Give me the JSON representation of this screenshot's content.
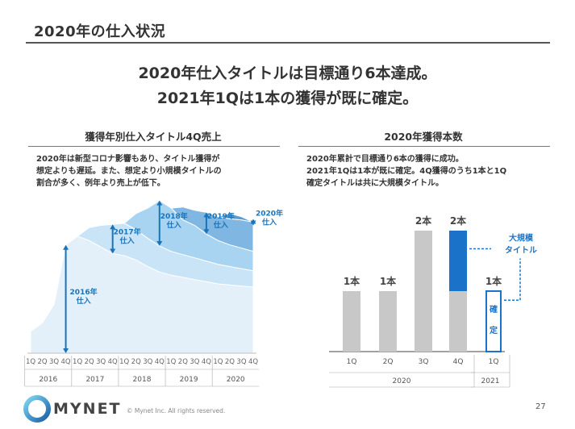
{
  "header": {
    "title": "2020年の仕入状況"
  },
  "headline": {
    "line1": "2020年仕入タイトルは目標通り6本達成。",
    "line2": "2021年1Qは1本の獲得が既に確定。"
  },
  "left_panel": {
    "title": "獲得年別仕入タイトル4Q売上",
    "description": [
      "2020年は新型コロナ影響もあり、タイトル獲得が",
      "想定よりも遅延。また、想定より小規模タイトルの",
      "割合が多く、例年より売上が低下。"
    ]
  },
  "right_panel": {
    "title": "2020年獲得本数",
    "description": [
      "2020年累計で目標通り6本の獲得に成功。",
      "2021年1Qは1本が既に確定。4Q獲得のうち1本と1Q",
      "確定タイトルは共に大規模タイトル。"
    ]
  },
  "colors": {
    "area_2016": "#e3f0fa",
    "area_2017": "#c9e4f7",
    "area_2018": "#a9d4f1",
    "area_2019": "#7fb7e2",
    "area_2020": "#5c9ccf",
    "arrow": "#1a73b8",
    "bar_gray": "#c8c8c8",
    "bar_blue": "#1a73c9"
  },
  "chart_data": [
    {
      "type": "area",
      "quarter_labels": [
        "1Q",
        "2Q",
        "3Q",
        "4Q",
        "1Q",
        "2Q",
        "3Q",
        "4Q",
        "1Q",
        "2Q",
        "3Q",
        "4Q",
        "1Q",
        "2Q",
        "3Q",
        "4Q",
        "1Q",
        "2Q",
        "3Q",
        "4Q"
      ],
      "year_labels": [
        "2016",
        "2017",
        "2018",
        "2019",
        "2020"
      ],
      "series": [
        {
          "name": "2016年\n仕入",
          "start_index": 0,
          "values": [
            20,
            28,
            45,
            100,
            108,
            104,
            98,
            92,
            90,
            86,
            80,
            75,
            72,
            70,
            68,
            66,
            64,
            63,
            62,
            61
          ]
        },
        {
          "name": "2017年\n仕入",
          "start_index": 4,
          "values": [
            0,
            12,
            20,
            27,
            30,
            28,
            26,
            24,
            22,
            21,
            20,
            19,
            18,
            17,
            16,
            15
          ]
        },
        {
          "name": "2018年\n仕入",
          "start_index": 8,
          "values": [
            0,
            15,
            28,
            42,
            40,
            32,
            30,
            25,
            22,
            20,
            19,
            18
          ]
        },
        {
          "name": "2019年\n仕入",
          "start_index": 12,
          "values": [
            0,
            12,
            14,
            20,
            22,
            24,
            26,
            27
          ]
        },
        {
          "name": "2020年\n仕入",
          "start_index": 16,
          "values": [
            0,
            5,
            3,
            0
          ]
        }
      ],
      "ylim": [
        0,
        140
      ],
      "xlabel": "",
      "ylabel": ""
    },
    {
      "type": "bar",
      "categories": [
        "1Q",
        "2Q",
        "3Q",
        "4Q",
        "1Q"
      ],
      "year_groups": [
        {
          "label": "2020",
          "count": 4
        },
        {
          "label": "2021",
          "count": 1
        }
      ],
      "values": [
        1,
        1,
        2,
        2,
        1
      ],
      "large_title_counts": [
        0,
        0,
        0,
        1,
        1
      ],
      "data_labels": [
        "1本",
        "1本",
        "2本",
        "2本",
        "1本"
      ],
      "confirmed_label": [
        "確",
        "定"
      ],
      "annotation": [
        "大規模",
        "タイトル"
      ],
      "ylim": [
        0,
        2.2
      ]
    }
  ],
  "footer": {
    "logo": "MYNET",
    "copyright": "© Mynet Inc. All rights reserved.",
    "page": "27"
  }
}
